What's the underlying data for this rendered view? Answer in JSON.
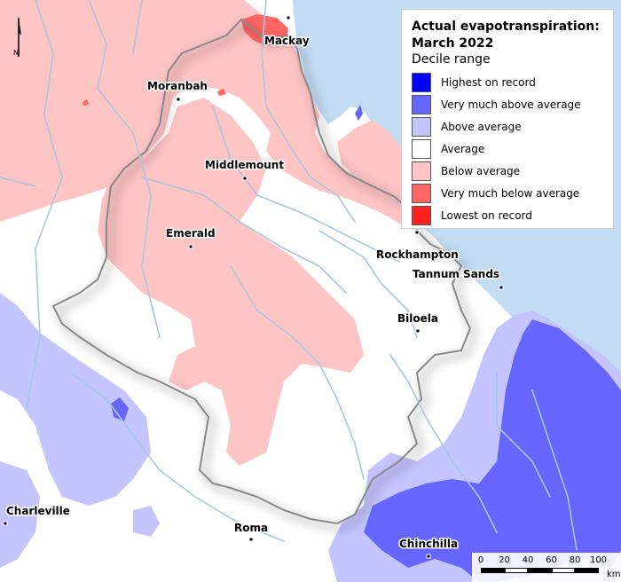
{
  "legend": {
    "title_line1": "Actual evapotranspiration:",
    "title_line2": "March 2022",
    "subtitle": "Decile range",
    "items": [
      {
        "label": "Highest on record",
        "color": "#0000ff"
      },
      {
        "label": "Very much above average",
        "color": "#6666ff"
      },
      {
        "label": "Above average",
        "color": "#c4c4ff"
      },
      {
        "label": "Average",
        "color": "#ffffff"
      },
      {
        "label": "Below average",
        "color": "#ffc4c4"
      },
      {
        "label": "Very much below average",
        "color": "#ff6666"
      },
      {
        "label": "Lowest on record",
        "color": "#ff2020"
      }
    ]
  },
  "north_arrow": {
    "label": "N"
  },
  "towns": [
    {
      "name": "Mackay"
    },
    {
      "name": "Moranbah"
    },
    {
      "name": "Middlemount"
    },
    {
      "name": "Emerald"
    },
    {
      "name": "Rockhampton"
    },
    {
      "name": "Tannum Sands"
    },
    {
      "name": "Biloela"
    },
    {
      "name": "Charleville"
    },
    {
      "name": "Roma"
    },
    {
      "name": "Chinchilla"
    }
  ],
  "scale_bar": {
    "ticks": [
      "0",
      "20",
      "40",
      "60",
      "80",
      "100"
    ],
    "unit": "km"
  },
  "colors": {
    "ocean": "#c2dcf4",
    "river": "#a9c6e0",
    "land": "#ffffff"
  }
}
